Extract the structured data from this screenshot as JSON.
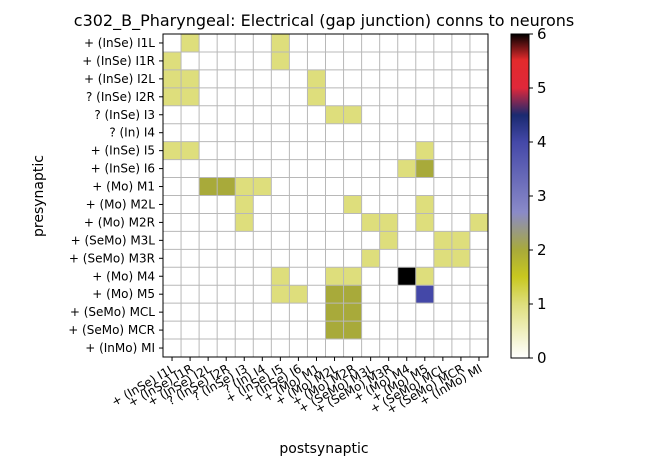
{
  "chart_data": {
    "type": "heatmap",
    "title": "c302_B_Pharyngeal: Electrical (gap junction) conns to neurons",
    "xlabel": "postsynaptic",
    "ylabel": "presynaptic",
    "rows": [
      "+ (InSe) I1L",
      "+ (InSe) I1R",
      "+ (InSe) I2L",
      "? (InSe) I2R",
      "? (InSe) I3",
      "? (In) I4",
      "+ (InSe) I5",
      "+ (InSe) I6",
      "+ (Mo) M1",
      "+ (Mo) M2L",
      "+ (Mo) M2R",
      "+ (SeMo) M3L",
      "+ (SeMo) M3R",
      "+ (Mo) M4",
      "+ (Mo) M5",
      "+ (SeMo) MCL",
      "+ (SeMo) MCR",
      "+ (InMo) MI"
    ],
    "columns": [
      "+ (InSe) I1L",
      "+ (InSe) I1R",
      "+ (InSe) I2L",
      "? (InSe) I2R",
      "? (InSe) I3",
      "? (In) I4",
      "+ (InSe) I5",
      "+ (InSe) I6",
      "+ (Mo) M1",
      "+ (Mo) M2L",
      "+ (Mo) M2R",
      "+ (SeMo) M3L",
      "+ (SeMo) M3R",
      "+ (Mo) M4",
      "+ (Mo) M5",
      "+ (SeMo) MCL",
      "+ (SeMo) MCR",
      "+ (InMo) MI"
    ],
    "values": [
      [
        0,
        1,
        0,
        0,
        0,
        0,
        1,
        0,
        0,
        0,
        0,
        0,
        0,
        0,
        0,
        0,
        0,
        0
      ],
      [
        1,
        0,
        0,
        0,
        0,
        0,
        1,
        0,
        0,
        0,
        0,
        0,
        0,
        0,
        0,
        0,
        0,
        0
      ],
      [
        1,
        1,
        0,
        0,
        0,
        0,
        0,
        0,
        1,
        0,
        0,
        0,
        0,
        0,
        0,
        0,
        0,
        0
      ],
      [
        1,
        1,
        0,
        0,
        0,
        0,
        0,
        0,
        1,
        0,
        0,
        0,
        0,
        0,
        0,
        0,
        0,
        0
      ],
      [
        0,
        0,
        0,
        0,
        0,
        0,
        0,
        0,
        0,
        1,
        1,
        0,
        0,
        0,
        0,
        0,
        0,
        0
      ],
      [
        0,
        0,
        0,
        0,
        0,
        0,
        0,
        0,
        0,
        0,
        0,
        0,
        0,
        0,
        0,
        0,
        0,
        0
      ],
      [
        1,
        1,
        0,
        0,
        0,
        0,
        0,
        0,
        0,
        0,
        0,
        0,
        0,
        0,
        1,
        0,
        0,
        0
      ],
      [
        0,
        0,
        0,
        0,
        0,
        0,
        0,
        0,
        0,
        0,
        0,
        0,
        0,
        1,
        2,
        0,
        0,
        0
      ],
      [
        0,
        0,
        2,
        2,
        1,
        1,
        0,
        0,
        0,
        0,
        0,
        0,
        0,
        0,
        0,
        0,
        0,
        0
      ],
      [
        0,
        0,
        0,
        0,
        1,
        0,
        0,
        0,
        0,
        0,
        1,
        0,
        0,
        0,
        1,
        0,
        0,
        0
      ],
      [
        0,
        0,
        0,
        0,
        1,
        0,
        0,
        0,
        0,
        0,
        0,
        1,
        1,
        0,
        1,
        0,
        0,
        1
      ],
      [
        0,
        0,
        0,
        0,
        0,
        0,
        0,
        0,
        0,
        0,
        0,
        0,
        1,
        0,
        0,
        1,
        1,
        0
      ],
      [
        0,
        0,
        0,
        0,
        0,
        0,
        0,
        0,
        0,
        0,
        0,
        1,
        0,
        0,
        0,
        1,
        1,
        0
      ],
      [
        0,
        0,
        0,
        0,
        0,
        0,
        1,
        0,
        0,
        1,
        1,
        0,
        0,
        6,
        1,
        0,
        0,
        0
      ],
      [
        0,
        0,
        0,
        0,
        0,
        0,
        1,
        1,
        0,
        2,
        2,
        0,
        0,
        0,
        4,
        0,
        0,
        0
      ],
      [
        0,
        0,
        0,
        0,
        0,
        0,
        0,
        0,
        0,
        2,
        2,
        0,
        0,
        0,
        0,
        0,
        0,
        0
      ],
      [
        0,
        0,
        0,
        0,
        0,
        0,
        0,
        0,
        0,
        2,
        2,
        0,
        0,
        0,
        0,
        0,
        0,
        0
      ],
      [
        0,
        0,
        0,
        0,
        0,
        0,
        0,
        0,
        0,
        0,
        0,
        0,
        0,
        0,
        0,
        0,
        0,
        0
      ]
    ],
    "vmin": 0,
    "vmax": 6,
    "colorbar_ticks": [
      0,
      1,
      2,
      3,
      4,
      5,
      6
    ],
    "colormap": "gist_stern_r",
    "grid": true
  }
}
